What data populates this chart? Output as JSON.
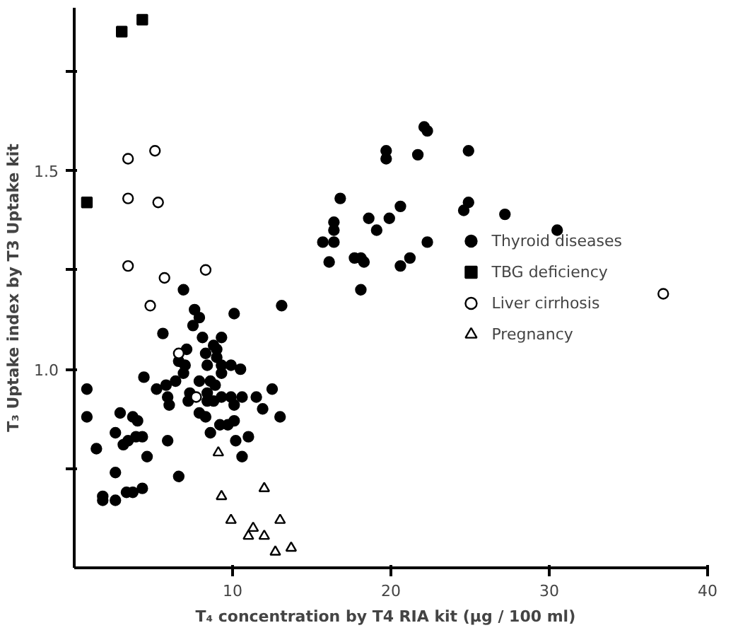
{
  "chart_data": {
    "type": "scatter",
    "xlabel": "T₄ concentration by T4 RIA kit   (μg / 100 ml)",
    "ylabel": "T₃ Uptake index by T3 Uptake kit",
    "xlim": [
      0,
      40
    ],
    "xticks": [
      10,
      20,
      30,
      40
    ],
    "ylim": [
      0.5,
      1.91
    ],
    "yticks": [
      {
        "value": 0.75,
        "label": null
      },
      {
        "value": 1.0,
        "label": "1.0"
      },
      {
        "value": 1.25,
        "label": null
      },
      1.5,
      {
        "value": 1.75,
        "label": null
      }
    ],
    "grid": false,
    "legend": "right",
    "series": [
      {
        "name": "Thyroid diseases",
        "color": "#000000",
        "marker": "circle",
        "x": [
          22.1,
          22.3,
          19.7,
          19.7,
          21.7,
          24.9,
          16.8,
          16.4,
          16.4,
          18.6,
          19.9,
          20.6,
          24.9,
          24.6,
          27.2,
          30.5,
          15.7,
          16.4,
          19.1,
          16.1,
          17.7,
          18.1,
          18.3,
          20.6,
          21.2,
          22.3,
          18.1,
          6.9,
          13.1,
          5.6,
          10.1,
          7.6,
          7.9,
          7.5,
          9.3,
          8.1,
          8.8,
          9.0,
          7.1,
          8.3,
          6.6,
          7.0,
          6.9,
          6.4,
          5.8,
          5.2,
          5.9,
          4.4,
          0.8,
          0.8,
          8.4,
          9.0,
          9.3,
          9.9,
          10.5,
          9.3,
          8.6,
          8.9,
          7.9,
          7.3,
          7.2,
          8.4,
          9.3,
          9.9,
          10.6,
          8.4,
          8.8,
          10.1,
          7.9,
          8.3,
          9.2,
          9.7,
          10.1,
          8.6,
          10.2,
          11.0,
          10.6,
          11.5,
          11.9,
          12.5,
          13.0,
          6.0,
          5.9,
          6.6,
          1.4,
          2.6,
          2.9,
          2.6,
          3.1,
          3.4,
          3.7,
          4.0,
          3.9,
          4.3,
          4.6,
          1.8,
          1.8,
          2.6,
          3.3,
          3.7,
          4.3
        ],
        "values": [
          1.61,
          1.6,
          1.55,
          1.53,
          1.54,
          1.55,
          1.43,
          1.37,
          1.35,
          1.38,
          1.38,
          1.41,
          1.42,
          1.4,
          1.39,
          1.35,
          1.32,
          1.32,
          1.35,
          1.27,
          1.28,
          1.28,
          1.27,
          1.26,
          1.28,
          1.32,
          1.2,
          1.2,
          1.16,
          1.09,
          1.14,
          1.15,
          1.13,
          1.11,
          1.08,
          1.08,
          1.06,
          1.05,
          1.05,
          1.04,
          1.02,
          1.01,
          0.99,
          0.97,
          0.96,
          0.95,
          0.93,
          0.98,
          0.95,
          0.88,
          1.01,
          1.03,
          1.01,
          1.01,
          1.0,
          0.99,
          0.97,
          0.96,
          0.97,
          0.94,
          0.92,
          0.94,
          0.93,
          0.93,
          0.93,
          0.92,
          0.92,
          0.91,
          0.89,
          0.88,
          0.86,
          0.86,
          0.87,
          0.84,
          0.82,
          0.83,
          0.78,
          0.93,
          0.9,
          0.95,
          0.88,
          0.91,
          0.82,
          0.73,
          0.8,
          0.74,
          0.89,
          0.84,
          0.81,
          0.82,
          0.88,
          0.87,
          0.83,
          0.83,
          0.78,
          0.68,
          0.67,
          0.67,
          0.69,
          0.69,
          0.7
        ]
      },
      {
        "name": "TBG deficiency",
        "color": "#000000",
        "marker": "square",
        "x": [
          3.0,
          4.3,
          0.8
        ],
        "values": [
          1.85,
          1.88,
          1.42
        ]
      },
      {
        "name": "Liver cirrhosis",
        "color": "#000000",
        "marker": "circle_open",
        "x": [
          3.4,
          5.1,
          3.4,
          5.3,
          3.4,
          5.7,
          8.3,
          4.8,
          6.6,
          7.7,
          37.2
        ],
        "values": [
          1.53,
          1.55,
          1.43,
          1.42,
          1.26,
          1.23,
          1.25,
          1.16,
          1.04,
          0.93,
          1.19
        ]
      },
      {
        "name": "Pregnancy",
        "color": "#000000",
        "marker": "triangle_open",
        "x": [
          9.1,
          12.0,
          9.3,
          9.9,
          13.0,
          11.3,
          11.0,
          12.0,
          12.7,
          13.7
        ],
        "values": [
          0.79,
          0.7,
          0.68,
          0.62,
          0.62,
          0.6,
          0.58,
          0.58,
          0.54,
          0.55
        ]
      }
    ]
  }
}
